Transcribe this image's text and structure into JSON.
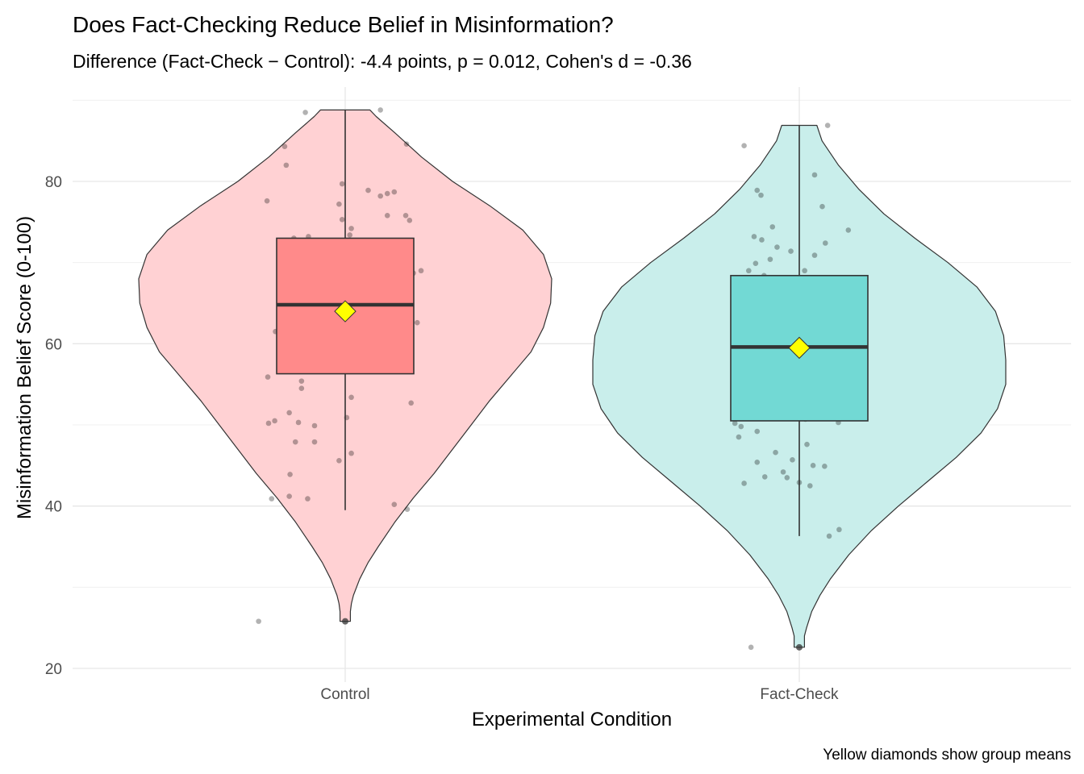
{
  "chart_data": {
    "type": "violin",
    "title": "Does Fact-Checking Reduce Belief in Misinformation?",
    "subtitle": "Difference (Fact-Check − Control): -4.4 points, p = 0.012, Cohen's d = -0.36",
    "xlabel": "Experimental Condition",
    "ylabel": "Misinformation Belief Score (0-100)",
    "caption": "Yellow diamonds show group means",
    "ylim": [
      19,
      90
    ],
    "yticks": [
      20,
      40,
      60,
      80
    ],
    "categories": [
      "Control",
      "Fact-Check"
    ],
    "grid": true,
    "legend": "none",
    "groups": [
      {
        "name": "Control",
        "violin_color": "#ffd1d3",
        "box_color": "#ff8a8a",
        "min": 25.8,
        "q1": 56.3,
        "median": 64.8,
        "q3": 73.0,
        "max": 88.8,
        "whisker_low": 39.5,
        "whisker_high": 88.8,
        "outliers": [
          25.8
        ],
        "mean": 64.0,
        "density": [
          [
            25.8,
            0.025
          ],
          [
            27,
            0.025
          ],
          [
            28,
            0.03
          ],
          [
            29,
            0.04
          ],
          [
            31,
            0.07
          ],
          [
            33,
            0.11
          ],
          [
            35,
            0.16
          ],
          [
            38,
            0.24
          ],
          [
            41,
            0.33
          ],
          [
            44,
            0.43
          ],
          [
            47,
            0.52
          ],
          [
            50,
            0.61
          ],
          [
            53,
            0.7
          ],
          [
            56,
            0.8
          ],
          [
            59,
            0.9
          ],
          [
            62,
            0.96
          ],
          [
            65,
            0.995
          ],
          [
            68,
            1.0
          ],
          [
            71,
            0.96
          ],
          [
            74,
            0.86
          ],
          [
            77,
            0.7
          ],
          [
            80,
            0.52
          ],
          [
            83,
            0.37
          ],
          [
            86,
            0.24
          ],
          [
            88,
            0.15
          ],
          [
            88.8,
            0.12
          ]
        ],
        "points": [
          [
            -0.52,
            88.5
          ],
          [
            0.46,
            88.8
          ],
          [
            -0.79,
            84.3
          ],
          [
            0.8,
            84.6
          ],
          [
            -0.77,
            82.0
          ],
          [
            -0.04,
            79.7
          ],
          [
            0.3,
            78.9
          ],
          [
            0.64,
            78.7
          ],
          [
            0.55,
            78.5
          ],
          [
            0.46,
            78.2
          ],
          [
            -1.02,
            77.6
          ],
          [
            0.79,
            75.8
          ],
          [
            -0.08,
            77.2
          ],
          [
            -0.04,
            75.3
          ],
          [
            0.55,
            75.8
          ],
          [
            0.84,
            75.2
          ],
          [
            0.08,
            74.2
          ],
          [
            -0.67,
            73.0
          ],
          [
            -0.48,
            73.2
          ],
          [
            0.06,
            73.4
          ],
          [
            -0.28,
            72.6
          ],
          [
            0.55,
            72.4
          ],
          [
            -0.24,
            71.4
          ],
          [
            -0.33,
            70.7
          ],
          [
            0.63,
            71.0
          ],
          [
            -0.44,
            70.3
          ],
          [
            0.11,
            70.6
          ],
          [
            0.22,
            69.7
          ],
          [
            0.55,
            69.6
          ],
          [
            -0.24,
            69.1
          ],
          [
            0.4,
            69.3
          ],
          [
            -0.79,
            69.0
          ],
          [
            0.89,
            68.7
          ],
          [
            0.99,
            69.0
          ],
          [
            -0.37,
            68.4
          ],
          [
            0.17,
            68.0
          ],
          [
            -0.04,
            67.6
          ],
          [
            0.71,
            67.3
          ],
          [
            -0.53,
            66.8
          ],
          [
            -0.19,
            66.5
          ],
          [
            0.2,
            66.3
          ],
          [
            0.71,
            65.9
          ],
          [
            -0.75,
            65.5
          ],
          [
            0.08,
            64.8
          ],
          [
            -0.62,
            64.4
          ],
          [
            -0.35,
            63.6
          ],
          [
            0.37,
            63.9
          ],
          [
            0.62,
            63.7
          ],
          [
            0.09,
            63.2
          ],
          [
            0.45,
            63.0
          ],
          [
            0.94,
            62.6
          ],
          [
            0.64,
            62.4
          ],
          [
            -0.62,
            62.7
          ],
          [
            -0.91,
            61.5
          ],
          [
            -0.44,
            60.8
          ],
          [
            -0.81,
            61.2
          ],
          [
            0.53,
            60.9
          ],
          [
            0.2,
            60.5
          ],
          [
            -0.78,
            59.6
          ],
          [
            -0.32,
            59.2
          ],
          [
            0.13,
            58.9
          ],
          [
            0.38,
            58.6
          ],
          [
            0.71,
            58.5
          ],
          [
            0.67,
            58.1
          ],
          [
            -0.66,
            57.3
          ],
          [
            -1.01,
            55.9
          ],
          [
            -0.84,
            57.0
          ],
          [
            -0.57,
            55.4
          ],
          [
            -0.57,
            54.5
          ],
          [
            0.08,
            53.4
          ],
          [
            0.86,
            52.7
          ],
          [
            -0.73,
            51.5
          ],
          [
            -0.92,
            50.5
          ],
          [
            -0.61,
            50.3
          ],
          [
            -1.0,
            50.2
          ],
          [
            -0.4,
            49.9
          ],
          [
            0.02,
            50.9
          ],
          [
            -0.65,
            47.9
          ],
          [
            -0.4,
            47.9
          ],
          [
            0.08,
            46.5
          ],
          [
            -0.08,
            45.6
          ],
          [
            -0.72,
            43.9
          ],
          [
            -0.73,
            41.2
          ],
          [
            -0.49,
            40.9
          ],
          [
            -0.96,
            40.9
          ],
          [
            0.64,
            40.2
          ],
          [
            0.81,
            39.6
          ],
          [
            -1.13,
            25.8
          ]
        ]
      },
      {
        "name": "Fact-Check",
        "violin_color": "#c9eeeb",
        "box_color": "#72d9d4",
        "min": 22.6,
        "q1": 50.5,
        "median": 59.6,
        "q3": 68.4,
        "max": 86.9,
        "whisker_low": 36.3,
        "whisker_high": 86.9,
        "outliers": [
          22.6
        ],
        "mean": 59.5,
        "density": [
          [
            22.6,
            0.025
          ],
          [
            24,
            0.025
          ],
          [
            25,
            0.035
          ],
          [
            27,
            0.06
          ],
          [
            29,
            0.1
          ],
          [
            31,
            0.15
          ],
          [
            34,
            0.24
          ],
          [
            37,
            0.35
          ],
          [
            40,
            0.48
          ],
          [
            43,
            0.62
          ],
          [
            46,
            0.76
          ],
          [
            49,
            0.88
          ],
          [
            52,
            0.96
          ],
          [
            55,
            1.0
          ],
          [
            58,
            1.0
          ],
          [
            61,
            0.99
          ],
          [
            64,
            0.95
          ],
          [
            67,
            0.86
          ],
          [
            70,
            0.72
          ],
          [
            73,
            0.56
          ],
          [
            76,
            0.41
          ],
          [
            79,
            0.29
          ],
          [
            82,
            0.19
          ],
          [
            85,
            0.11
          ],
          [
            86.9,
            0.085
          ]
        ],
        "points": [
          [
            0.37,
            86.9
          ],
          [
            -0.72,
            84.4
          ],
          [
            -0.55,
            78.9
          ],
          [
            0.2,
            80.8
          ],
          [
            0.3,
            76.9
          ],
          [
            -0.5,
            78.3
          ],
          [
            -0.35,
            74.4
          ],
          [
            0.64,
            74.0
          ],
          [
            -0.59,
            73.2
          ],
          [
            -0.49,
            72.8
          ],
          [
            0.34,
            72.4
          ],
          [
            -0.29,
            71.9
          ],
          [
            -0.11,
            71.4
          ],
          [
            0.2,
            70.9
          ],
          [
            -0.38,
            70.4
          ],
          [
            -0.57,
            69.9
          ],
          [
            -0.66,
            69.0
          ],
          [
            0.07,
            69.0
          ],
          [
            -0.46,
            68.4
          ],
          [
            0.37,
            67.5
          ],
          [
            0.23,
            66.6
          ],
          [
            0.01,
            66.4
          ],
          [
            -0.4,
            66.1
          ],
          [
            -0.02,
            65.9
          ],
          [
            0.48,
            65.5
          ],
          [
            -0.81,
            64.7
          ],
          [
            0.4,
            64.5
          ],
          [
            0.35,
            64.1
          ],
          [
            -0.52,
            63.7
          ],
          [
            -0.76,
            63.4
          ],
          [
            0.08,
            62.9
          ],
          [
            -0.7,
            62.1
          ],
          [
            -0.05,
            62.3
          ],
          [
            0.25,
            61.9
          ],
          [
            -0.86,
            61.2
          ],
          [
            0.48,
            60.7
          ],
          [
            0.2,
            60.4
          ],
          [
            -0.55,
            60.2
          ],
          [
            -0.15,
            59.7
          ],
          [
            -0.34,
            59.0
          ],
          [
            0.67,
            58.8
          ],
          [
            -0.5,
            58.3
          ],
          [
            0.19,
            57.9
          ],
          [
            -0.07,
            57.9
          ],
          [
            -0.7,
            57.2
          ],
          [
            -0.4,
            56.3
          ],
          [
            0.28,
            56.0
          ],
          [
            -0.16,
            55.7
          ],
          [
            0.55,
            55.5
          ],
          [
            -0.38,
            55.3
          ],
          [
            0.37,
            54.9
          ],
          [
            -0.71,
            54.5
          ],
          [
            0.06,
            54.4
          ],
          [
            -0.23,
            54.0
          ],
          [
            0.39,
            54.3
          ],
          [
            0.68,
            54.6
          ],
          [
            0.59,
            53.8
          ],
          [
            -0.43,
            53.6
          ],
          [
            -0.32,
            53.5
          ],
          [
            -0.06,
            53.4
          ],
          [
            0.68,
            53.2
          ],
          [
            -0.83,
            52.8
          ],
          [
            0.45,
            51.2
          ],
          [
            -0.45,
            51.1
          ],
          [
            0.08,
            50.7
          ],
          [
            0.51,
            50.3
          ],
          [
            -0.84,
            50.2
          ],
          [
            -0.76,
            49.8
          ],
          [
            -0.55,
            49.2
          ],
          [
            -0.79,
            48.5
          ],
          [
            0.1,
            47.6
          ],
          [
            -0.31,
            46.6
          ],
          [
            -0.09,
            45.7
          ],
          [
            -0.55,
            45.4
          ],
          [
            0.18,
            45.0
          ],
          [
            0.33,
            44.9
          ],
          [
            -0.21,
            44.2
          ],
          [
            -0.45,
            43.6
          ],
          [
            -0.16,
            43.5
          ],
          [
            -0.72,
            42.8
          ],
          [
            0.0,
            42.9
          ],
          [
            0.14,
            42.5
          ],
          [
            0.52,
            37.1
          ],
          [
            0.39,
            36.3
          ],
          [
            -0.63,
            22.6
          ]
        ]
      }
    ],
    "mean_marker": {
      "shape": "diamond",
      "color": "#ffff00"
    },
    "point_color": "#000000"
  }
}
